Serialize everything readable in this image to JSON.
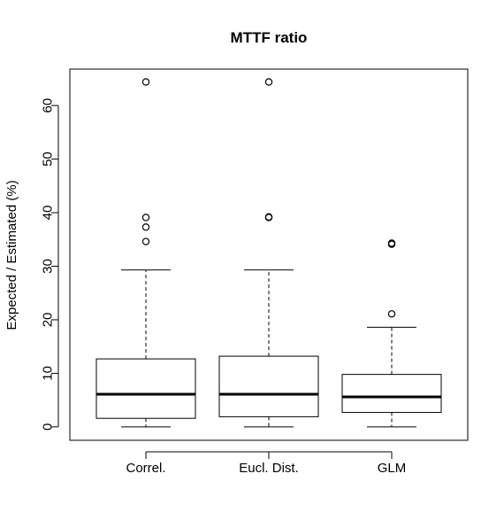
{
  "chart_data": {
    "type": "boxplot",
    "title": "MTTF ratio",
    "xlabel": "",
    "ylabel": "Expected / Estimated (%)",
    "ylim": [
      -2.5,
      66.8
    ],
    "yticks": [
      0,
      10,
      20,
      30,
      40,
      50,
      60
    ],
    "grid": false,
    "categories": [
      "Correl.",
      "Eucl. Dist.",
      "GLM"
    ],
    "boxes": [
      {
        "whisker_low": 0,
        "q1": 1.6,
        "median": 6.1,
        "q3": 12.7,
        "whisker_high": 29.3,
        "outliers": [
          34.6,
          37.3,
          39.1,
          64.4
        ]
      },
      {
        "whisker_low": 0,
        "q1": 1.9,
        "median": 6.1,
        "q3": 13.2,
        "whisker_high": 29.3,
        "outliers": [
          39.1,
          39.2,
          64.4
        ]
      },
      {
        "whisker_low": 0,
        "q1": 2.7,
        "median": 5.6,
        "q3": 9.8,
        "whisker_high": 18.6,
        "outliers": [
          21.1,
          34.1,
          34.3
        ]
      }
    ]
  }
}
